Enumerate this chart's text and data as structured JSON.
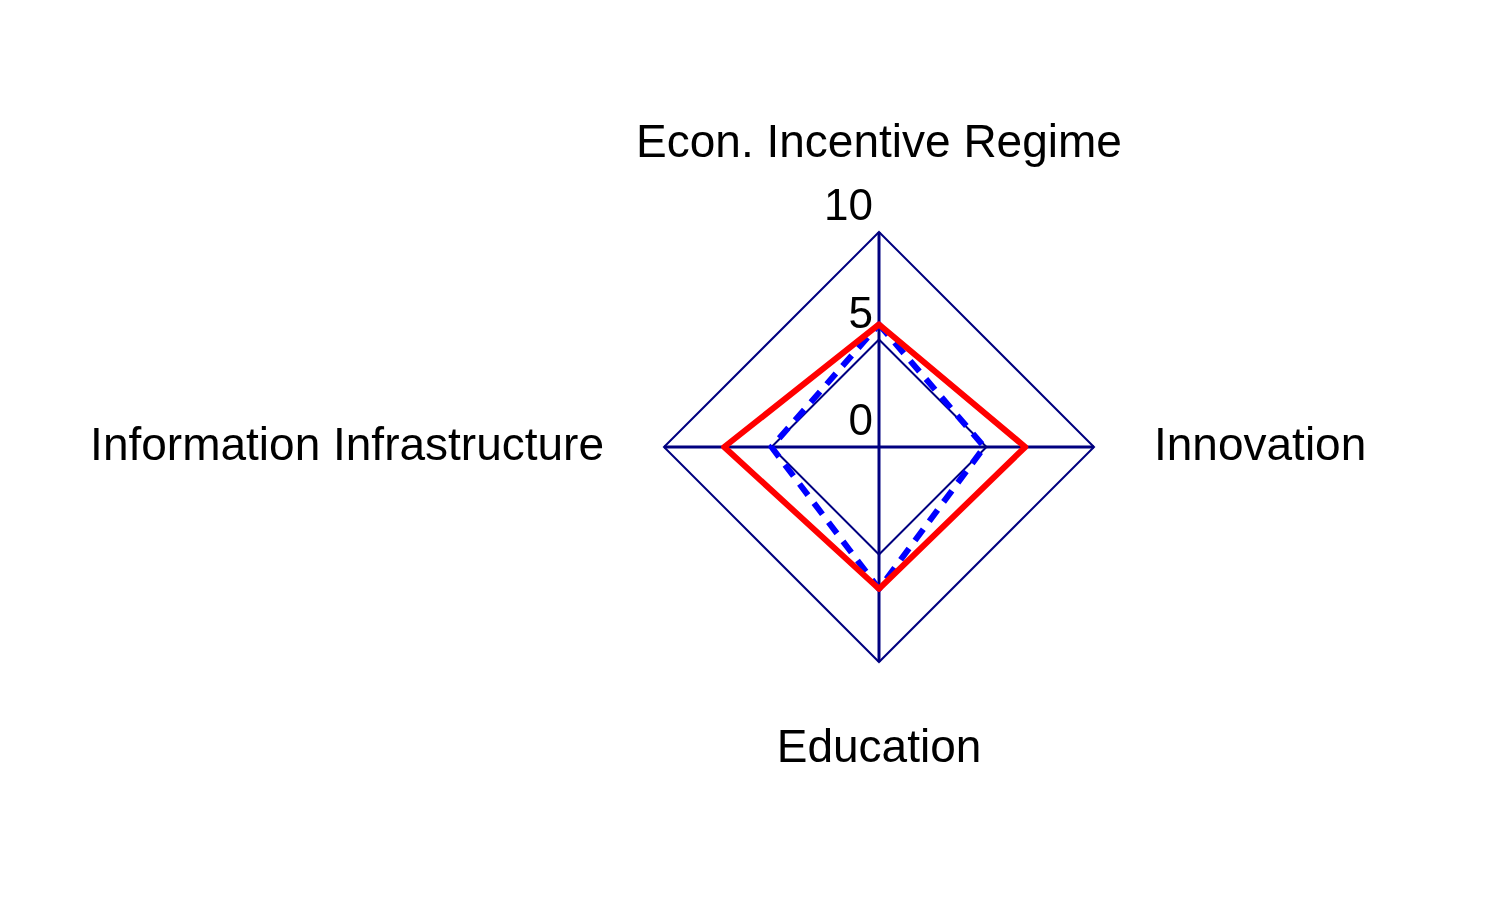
{
  "chart_data": {
    "type": "radar",
    "categories": [
      "Econ. Incentive Regime",
      "Innovation",
      "Education",
      "Information Infrastructure"
    ],
    "series": [
      {
        "color": "#ff0000",
        "values": [
          5.7,
          6.8,
          6.6,
          7.2
        ],
        "line_style": "solid"
      },
      {
        "color": "#0000ff",
        "values": [
          5.7,
          4.9,
          6.6,
          5.0
        ],
        "line_style": "dashed"
      }
    ],
    "ylim": [
      0,
      10
    ],
    "yticks": [
      0,
      5,
      10
    ],
    "grid": true,
    "marker": "none"
  }
}
